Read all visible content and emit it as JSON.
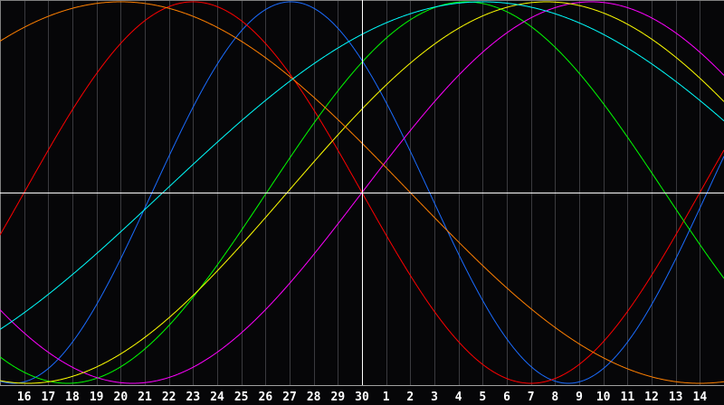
{
  "chart_data": {
    "type": "line",
    "x_tick_labels": [
      "16",
      "17",
      "18",
      "19",
      "20",
      "21",
      "22",
      "23",
      "24",
      "25",
      "26",
      "27",
      "28",
      "29",
      "30",
      "1",
      "2",
      "3",
      "4",
      "5",
      "6",
      "7",
      "8",
      "9",
      "10",
      "11",
      "12",
      "13",
      "14"
    ],
    "reference_day": "30",
    "ylim": [
      -1,
      1
    ],
    "grid": "vertical lines at each day",
    "center_lines": true,
    "background": "#060608",
    "series": [
      {
        "color": "#1a6cff",
        "period_days": 23,
        "zero_up_day_offset": -8.7
      },
      {
        "color": "#ff0000",
        "period_days": 28,
        "zero_up_day_offset": -14
      },
      {
        "color": "#00ff00",
        "period_days": 33,
        "zero_up_day_offset": -3.95
      },
      {
        "color": "#ff00ff",
        "period_days": 38,
        "zero_up_day_offset": 0
      },
      {
        "color": "#ffff00",
        "period_days": 43,
        "zero_up_day_offset": -3.1
      },
      {
        "color": "#ff8000",
        "period_days": 48,
        "zero_up_day_offset": -22
      },
      {
        "color": "#00ffff",
        "period_days": 53,
        "zero_up_day_offset": -8.25
      }
    ]
  }
}
